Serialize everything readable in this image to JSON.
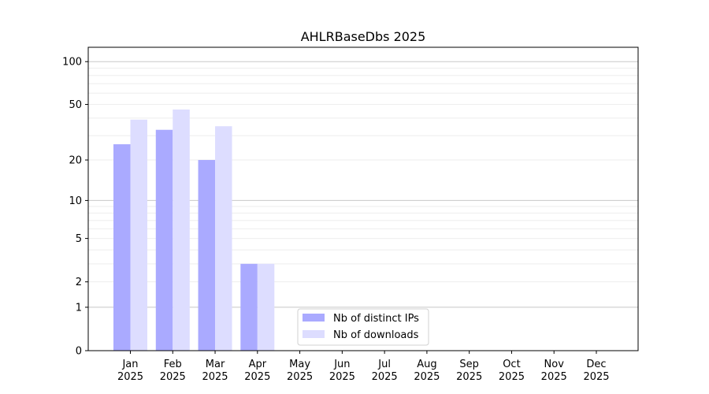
{
  "chart_data": {
    "type": "bar",
    "title": "AHLRBaseDbs 2025",
    "xlabel": "",
    "ylabel": "",
    "categories": [
      "Jan\n2025",
      "Feb\n2025",
      "Mar\n2025",
      "Apr\n2025",
      "May\n2025",
      "Jun\n2025",
      "Jul\n2025",
      "Aug\n2025",
      "Sep\n2025",
      "Oct\n2025",
      "Nov\n2025",
      "Dec\n2025"
    ],
    "series": [
      {
        "name": "Nb of distinct IPs",
        "color": "#aaaaff",
        "values": [
          26,
          33,
          20,
          3,
          0,
          0,
          0,
          0,
          0,
          0,
          0,
          0
        ]
      },
      {
        "name": "Nb of downloads",
        "color": "#ddddff",
        "values": [
          39,
          46,
          35,
          3,
          0,
          0,
          0,
          0,
          0,
          0,
          0,
          0
        ]
      }
    ],
    "yscale": "log(1+y)",
    "ylim": [
      0,
      120
    ],
    "yticks": [
      0,
      1,
      2,
      5,
      10,
      20,
      50,
      100
    ],
    "ytick_labels": [
      "0",
      "1",
      "2",
      "5",
      "10",
      "20",
      "50",
      "100"
    ],
    "grid": true,
    "legend_position": "lower-center"
  }
}
